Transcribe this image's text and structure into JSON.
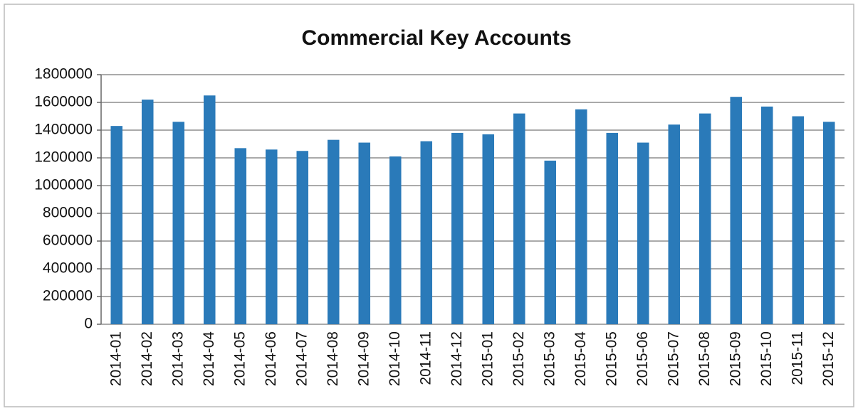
{
  "chart_data": {
    "type": "bar",
    "title": "Commercial Key Accounts",
    "categories": [
      "2014-01",
      "2014-02",
      "2014-03",
      "2014-04",
      "2014-05",
      "2014-06",
      "2014-07",
      "2014-08",
      "2014-09",
      "2014-10",
      "2014-11",
      "2014-12",
      "2015-01",
      "2015-02",
      "2015-03",
      "2015-04",
      "2015-05",
      "2015-06",
      "2015-07",
      "2015-08",
      "2015-09",
      "2015-10",
      "2015-11",
      "2015-12"
    ],
    "values": [
      1430000,
      1620000,
      1460000,
      1650000,
      1270000,
      1260000,
      1250000,
      1330000,
      1310000,
      1210000,
      1320000,
      1380000,
      1370000,
      1520000,
      1180000,
      1550000,
      1380000,
      1310000,
      1440000,
      1520000,
      1640000,
      1570000,
      1500000,
      1460000
    ],
    "color": "#2a7ab9",
    "ylim": [
      0,
      1800000
    ],
    "yticks": [
      0,
      200000,
      400000,
      600000,
      800000,
      1000000,
      1200000,
      1400000,
      1600000,
      1800000
    ],
    "grid": true
  }
}
